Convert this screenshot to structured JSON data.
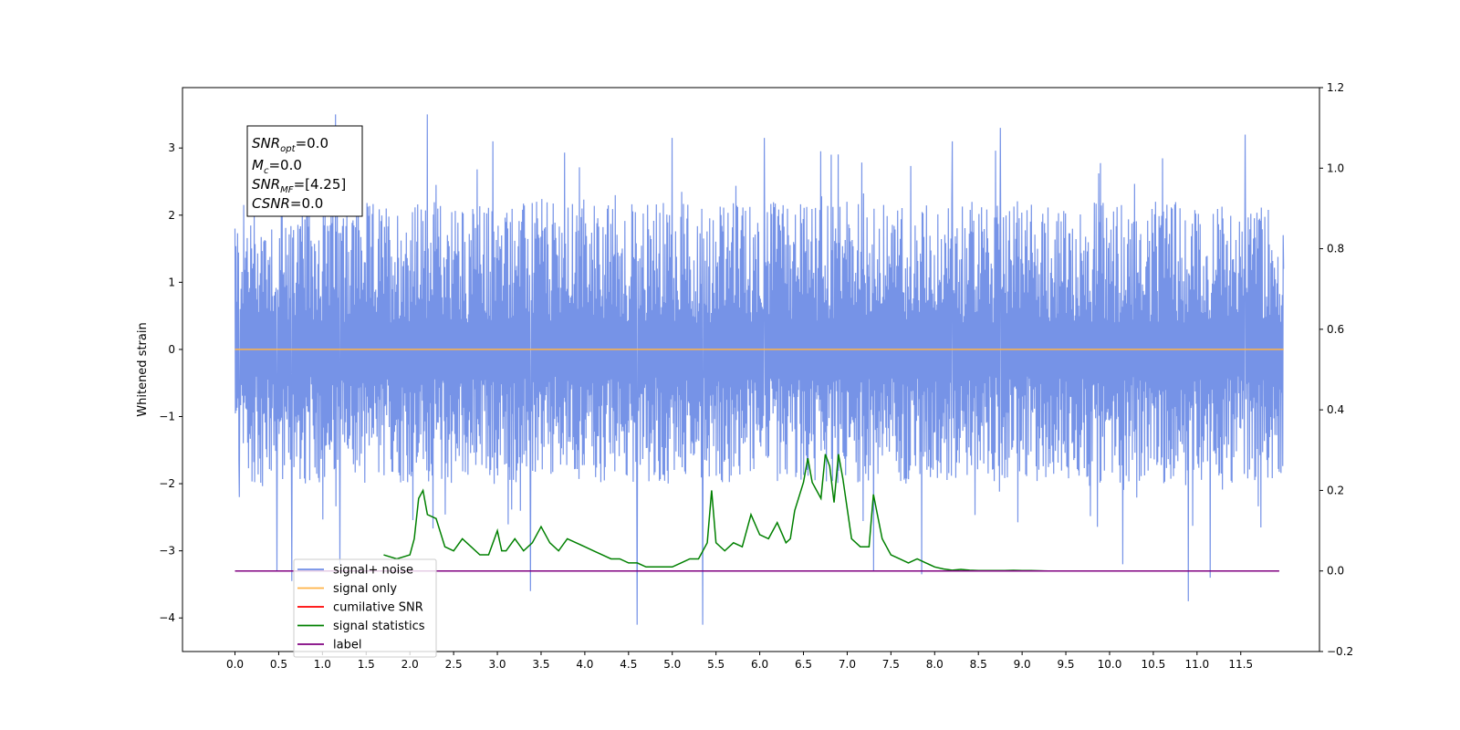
{
  "chart_data": {
    "type": "line",
    "title": "",
    "xlabel": "",
    "ylabel": "Whitened strain",
    "xlim": [
      -0.6,
      12.4
    ],
    "ylim": [
      -4.5,
      3.9
    ],
    "y2lim": [
      -0.2,
      1.2
    ],
    "grid": false,
    "legend_position": "lower-left",
    "x_ticks": [
      "0.0",
      "0.5",
      "1.0",
      "1.5",
      "2.0",
      "2.5",
      "3.0",
      "3.5",
      "4.0",
      "4.5",
      "5.0",
      "5.5",
      "6.0",
      "6.5",
      "7.0",
      "7.5",
      "8.0",
      "8.5",
      "9.0",
      "9.5",
      "10.0",
      "10.5",
      "11.0",
      "11.5"
    ],
    "y_ticks": [
      "−4",
      "−3",
      "−2",
      "−1",
      "0",
      "1",
      "2",
      "3"
    ],
    "y2_ticks": [
      "−0.2",
      "0.0",
      "0.2",
      "0.4",
      "0.6",
      "0.8",
      "1.0",
      "1.2"
    ],
    "annotation": {
      "snr_opt": {
        "prefix": "SNR",
        "sub": "opt",
        "value": "=0.0"
      },
      "mc": {
        "prefix": "M",
        "sub": "c",
        "value": "=0.0"
      },
      "snr_mf": {
        "prefix": "SNR",
        "sub": "MF",
        "value": "=[4.25]"
      },
      "csnr": {
        "prefix": "CSNR",
        "sub": "",
        "value": "=0.0"
      }
    },
    "series": [
      {
        "name": "signal+ noise",
        "color": "#6f8de6",
        "axis": "left",
        "x_range": [
          0.0,
          11.99
        ],
        "typical_envelope": [
          -2.0,
          2.2
        ],
        "peaks": [
          [
            0.0,
            1.8
          ],
          [
            0.05,
            -2.2
          ],
          [
            0.48,
            -3.3
          ],
          [
            0.65,
            -3.45
          ],
          [
            1.15,
            3.5
          ],
          [
            1.2,
            -3.2
          ],
          [
            2.2,
            3.5
          ],
          [
            2.95,
            3.1
          ],
          [
            3.38,
            -3.6
          ],
          [
            4.6,
            -4.1
          ],
          [
            5.0,
            3.15
          ],
          [
            5.35,
            -4.1
          ],
          [
            6.05,
            3.15
          ],
          [
            7.3,
            -3.3
          ],
          [
            7.85,
            -3.35
          ],
          [
            8.2,
            3.1
          ],
          [
            8.75,
            3.3
          ],
          [
            10.15,
            -3.2
          ],
          [
            10.9,
            -3.75
          ],
          [
            11.15,
            -3.4
          ],
          [
            11.55,
            3.2
          ],
          [
            11.99,
            1.2
          ]
        ]
      },
      {
        "name": "signal only",
        "color": "#ffb347",
        "axis": "left",
        "x": [
          0.0,
          11.99
        ],
        "y": [
          0.0,
          0.0
        ]
      },
      {
        "name": "cumilative SNR",
        "color": "#ff0000",
        "axis": "right",
        "x": [],
        "y": []
      },
      {
        "name": "signal statistics",
        "color": "#008000",
        "axis": "right",
        "x": [
          1.7,
          1.85,
          2.0,
          2.05,
          2.1,
          2.15,
          2.2,
          2.3,
          2.4,
          2.5,
          2.6,
          2.7,
          2.8,
          2.9,
          3.0,
          3.05,
          3.1,
          3.2,
          3.3,
          3.4,
          3.5,
          3.6,
          3.7,
          3.8,
          3.9,
          4.0,
          4.1,
          4.2,
          4.3,
          4.4,
          4.5,
          4.6,
          4.7,
          4.8,
          4.9,
          5.0,
          5.1,
          5.2,
          5.3,
          5.4,
          5.45,
          5.5,
          5.6,
          5.7,
          5.8,
          5.9,
          6.0,
          6.1,
          6.2,
          6.3,
          6.35,
          6.4,
          6.5,
          6.55,
          6.6,
          6.7,
          6.75,
          6.8,
          6.85,
          6.9,
          6.95,
          7.05,
          7.15,
          7.25,
          7.3,
          7.4,
          7.5,
          7.6,
          7.7,
          7.8,
          7.9,
          8.0,
          8.1,
          8.2,
          8.3,
          8.4,
          8.5,
          8.6,
          8.7,
          8.8,
          8.9,
          9.0,
          9.1,
          9.2,
          9.3,
          9.4,
          9.5
        ],
        "y": [
          0.04,
          0.03,
          0.04,
          0.08,
          0.18,
          0.2,
          0.14,
          0.13,
          0.06,
          0.05,
          0.08,
          0.06,
          0.04,
          0.04,
          0.1,
          0.05,
          0.05,
          0.08,
          0.05,
          0.07,
          0.11,
          0.07,
          0.05,
          0.08,
          0.07,
          0.06,
          0.05,
          0.04,
          0.03,
          0.03,
          0.02,
          0.02,
          0.01,
          0.01,
          0.01,
          0.01,
          0.02,
          0.03,
          0.03,
          0.07,
          0.2,
          0.07,
          0.05,
          0.07,
          0.06,
          0.14,
          0.09,
          0.08,
          0.12,
          0.07,
          0.08,
          0.15,
          0.22,
          0.28,
          0.22,
          0.18,
          0.29,
          0.26,
          0.17,
          0.29,
          0.23,
          0.08,
          0.06,
          0.06,
          0.19,
          0.08,
          0.04,
          0.03,
          0.02,
          0.03,
          0.02,
          0.01,
          0.005,
          0.002,
          0.004,
          0.002,
          0.001,
          0.001,
          0.001,
          0.001,
          0.0015,
          0.001,
          0.001,
          0.0005,
          0.0,
          0.0,
          0.0
        ]
      },
      {
        "name": "label",
        "color": "#800080",
        "axis": "right",
        "x": [
          0.0,
          11.94
        ],
        "y": [
          0.0,
          0.0
        ]
      }
    ]
  }
}
